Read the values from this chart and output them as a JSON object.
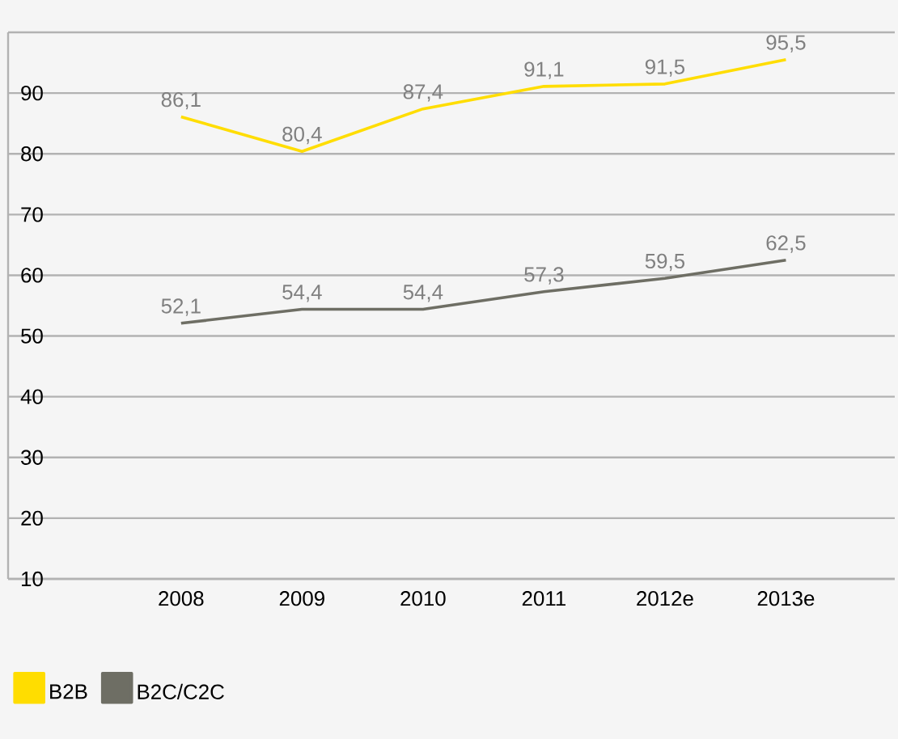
{
  "chart_data": {
    "type": "line",
    "categories": [
      "2008",
      "2009",
      "2010",
      "2011",
      "2012e",
      "2013e"
    ],
    "series": [
      {
        "name": "B2B",
        "color": "#ffdd00",
        "values": [
          86.1,
          80.4,
          87.4,
          91.1,
          91.5,
          95.5
        ],
        "value_labels": [
          "86,1",
          "80,4",
          "87,4",
          "91,1",
          "91,5",
          "95,5"
        ]
      },
      {
        "name": "B2C/C2C",
        "color": "#6e6e64",
        "values": [
          52.1,
          54.4,
          54.4,
          57.3,
          59.5,
          62.5
        ],
        "value_labels": [
          "52,1",
          "54,4",
          "54,4",
          "57,3",
          "59,5",
          "62,5"
        ]
      }
    ],
    "ylim": [
      10,
      100
    ],
    "yticks": [
      10,
      20,
      30,
      40,
      50,
      60,
      70,
      80,
      90
    ],
    "grid": "y",
    "legend": "bottom left",
    "marker": "none",
    "line_style": "solid"
  }
}
